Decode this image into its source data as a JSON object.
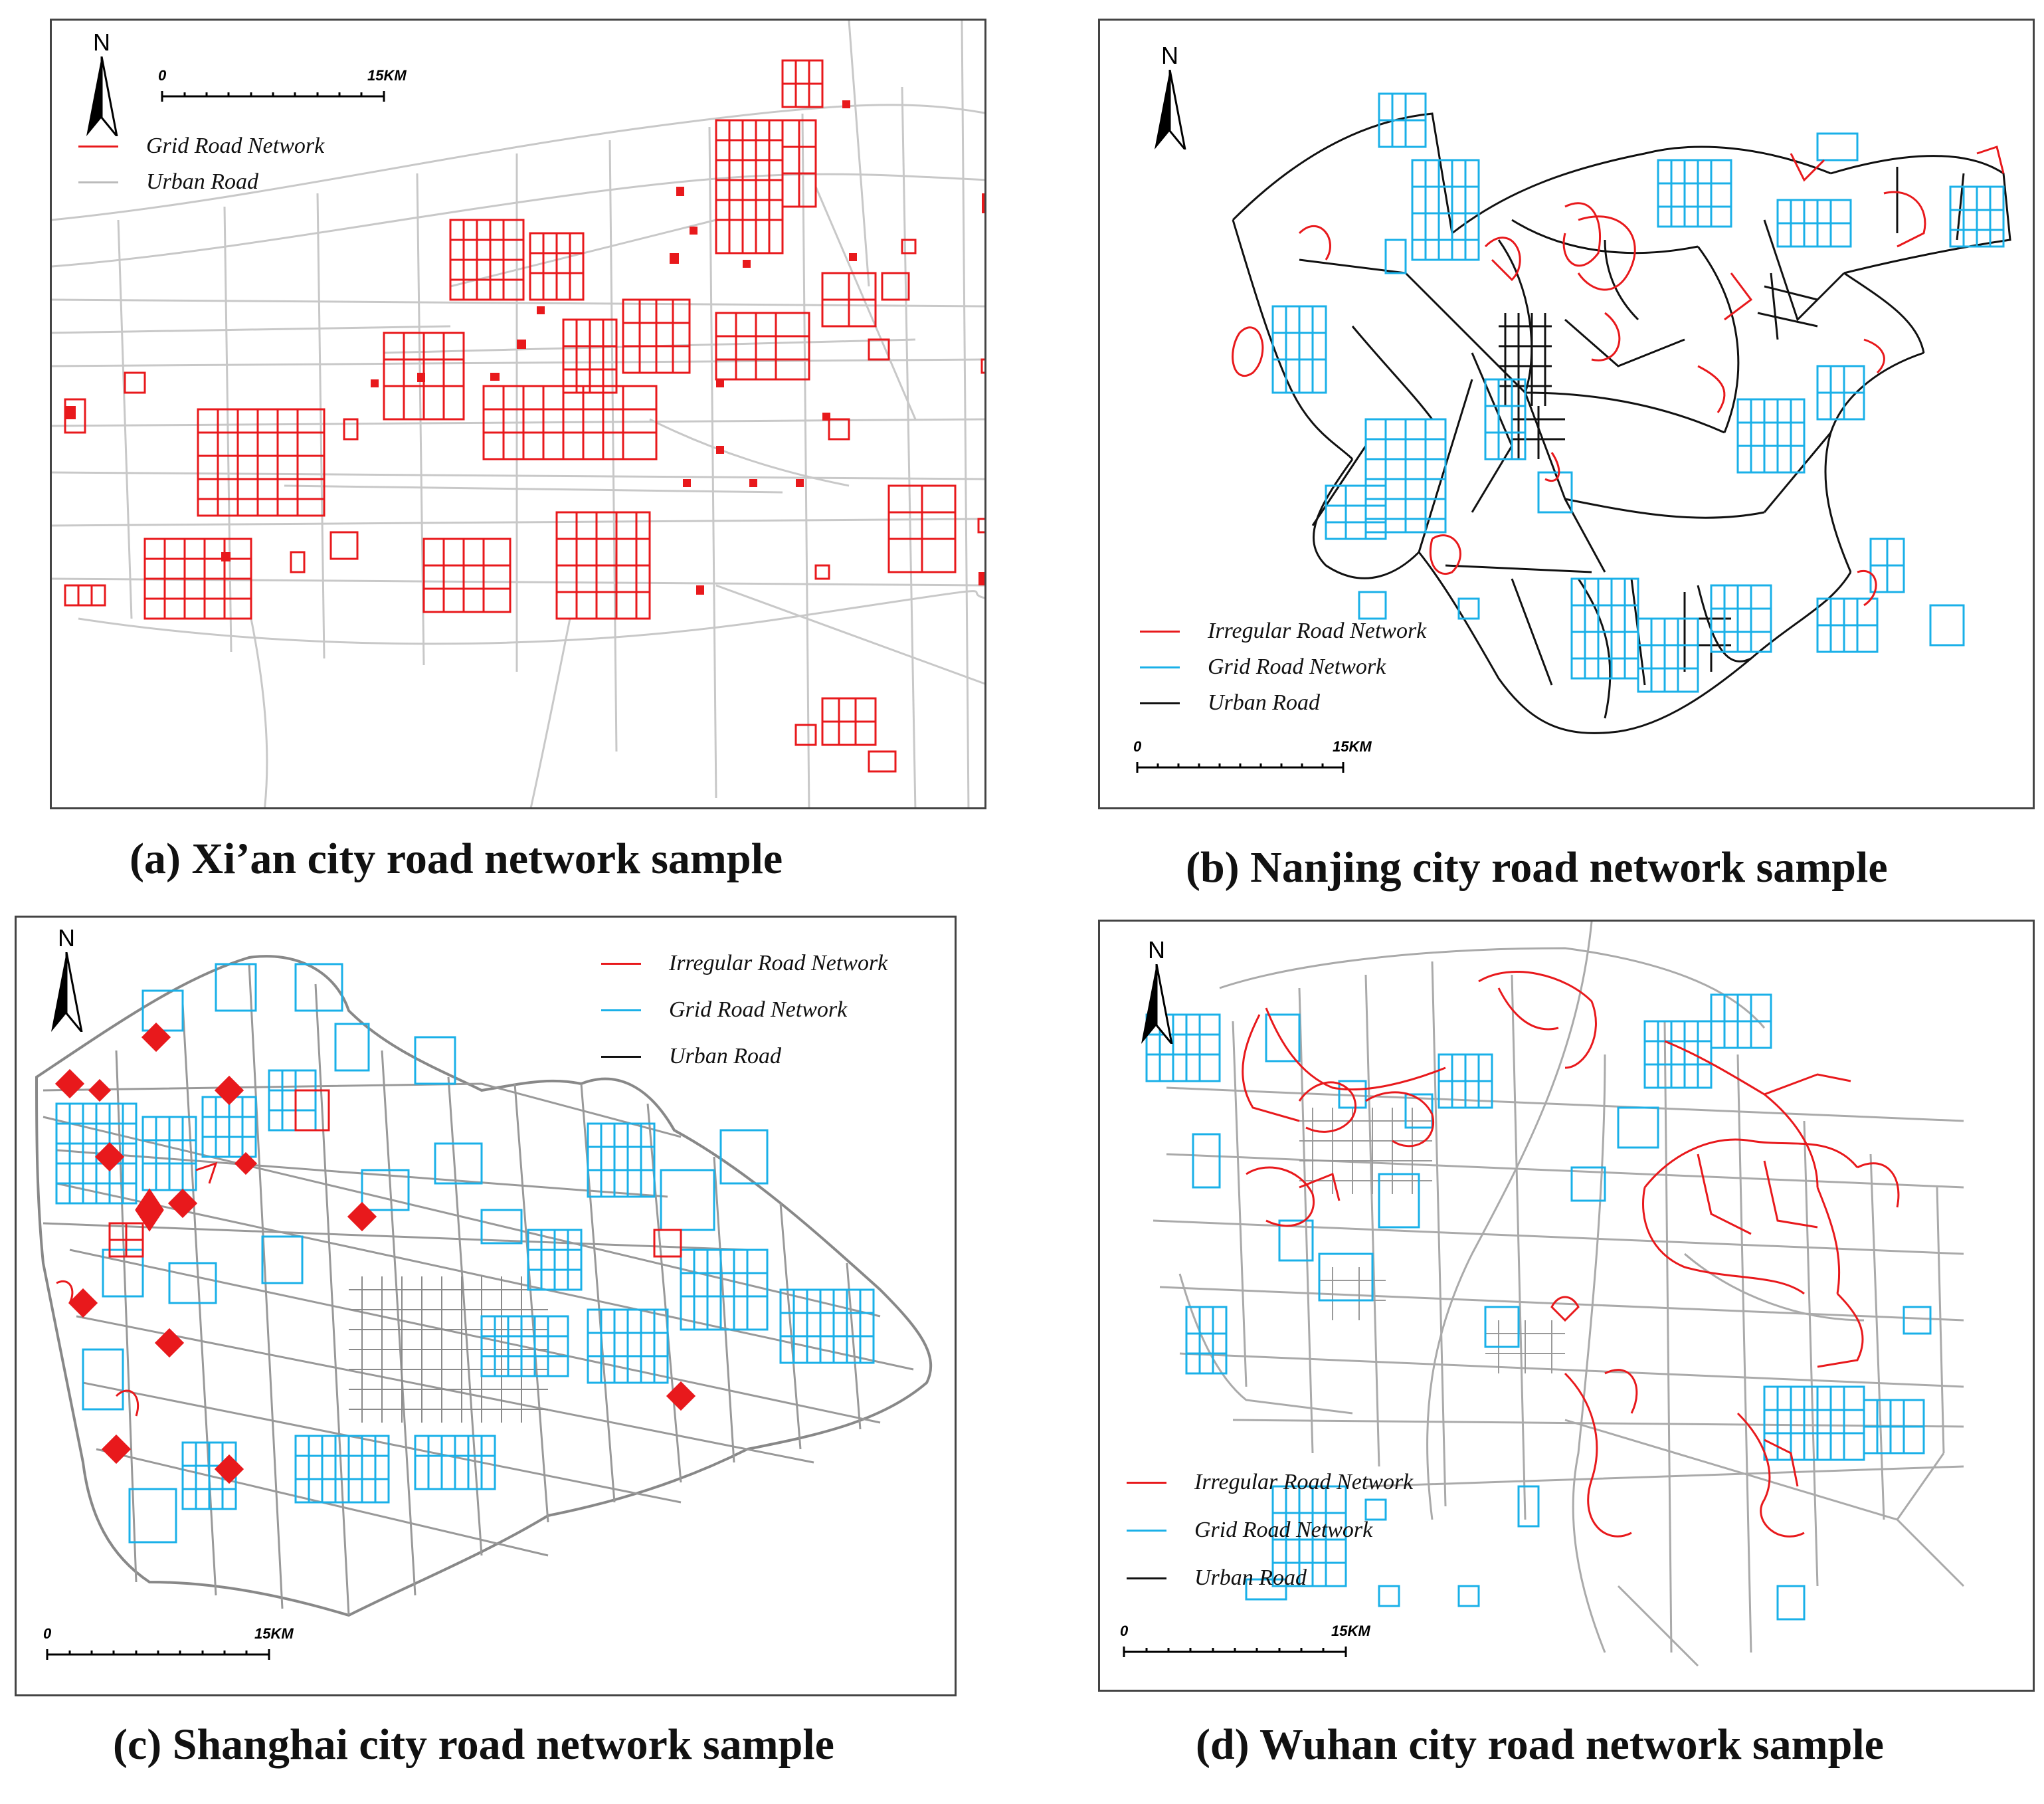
{
  "colors": {
    "grid": "#1ab0e8",
    "irregular": "#e8191c",
    "urban_gray": "#bbbbbb",
    "urban_black": "#111111",
    "frame": "#444444"
  },
  "panels": [
    {
      "id": "a",
      "caption": "(a) Xi’an city road network sample",
      "north": "N",
      "scale": {
        "zero": "0",
        "end": "15KM"
      },
      "legend": [
        {
          "label": "Grid Road Network",
          "color": "#e8191c"
        },
        {
          "label": "Urban Road",
          "color": "#bbbbbb"
        }
      ]
    },
    {
      "id": "b",
      "caption": "(b) Nanjing city road network sample",
      "north": "N",
      "scale": {
        "zero": "0",
        "end": "15KM"
      },
      "legend": [
        {
          "label": "Irregular Road Network",
          "color": "#e8191c"
        },
        {
          "label": "Grid Road Network",
          "color": "#1ab0e8"
        },
        {
          "label": "Urban Road",
          "color": "#111111"
        }
      ]
    },
    {
      "id": "c",
      "caption": "(c) Shanghai city road network sample",
      "north": "N",
      "scale": {
        "zero": "0",
        "end": "15KM"
      },
      "legend": [
        {
          "label": "Irregular Road Network",
          "color": "#e8191c"
        },
        {
          "label": "Grid Road Network",
          "color": "#1ab0e8"
        },
        {
          "label": "Urban Road",
          "color": "#111111"
        }
      ]
    },
    {
      "id": "d",
      "caption": "(d) Wuhan city road network sample",
      "north": "N",
      "scale": {
        "zero": "0",
        "end": "15KM"
      },
      "legend": [
        {
          "label": "Irregular Road Network",
          "color": "#e8191c"
        },
        {
          "label": "Grid Road Network",
          "color": "#1ab0e8"
        },
        {
          "label": "Urban Road",
          "color": "#111111"
        }
      ]
    }
  ]
}
